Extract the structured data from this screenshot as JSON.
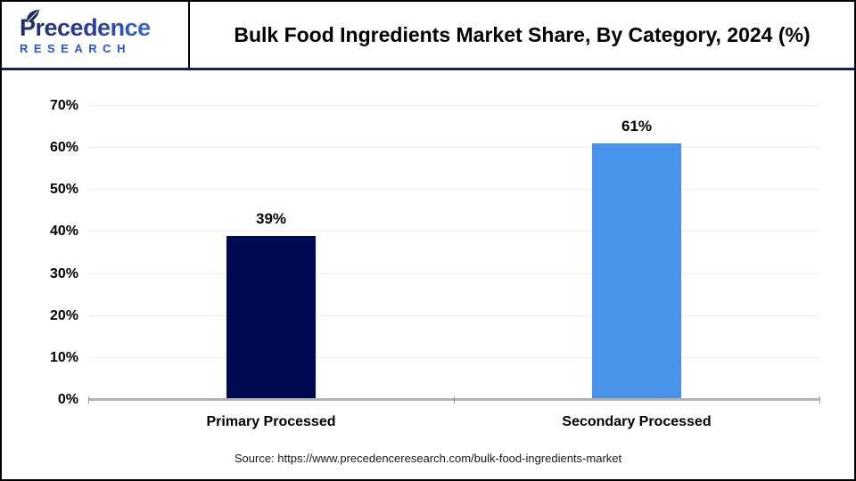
{
  "header": {
    "logo": {
      "brand": "Precedence",
      "sub": "RESEARCH"
    },
    "title": "Bulk Food Ingredients Market Share, By Category, 2024 (%)"
  },
  "chart_data": {
    "type": "bar",
    "title": "Bulk Food Ingredients Market Share, By Category, 2024 (%)",
    "categories": [
      "Primary Processed",
      "Secondary Processed"
    ],
    "values": [
      39,
      61
    ],
    "value_labels": [
      "39%",
      "61%"
    ],
    "bar_colors": [
      "#000a52",
      "#4793ea"
    ],
    "xlabel": "",
    "ylabel": "",
    "ylim": [
      0,
      70
    ],
    "ytick_step": 10,
    "ytick_labels": [
      "0%",
      "10%",
      "20%",
      "30%",
      "40%",
      "50%",
      "60%",
      "70%"
    ],
    "grid": true,
    "legend": false
  },
  "footer": {
    "source": "Source: https://www.precedenceresearch.com/bulk-food-ingredients-market"
  },
  "colors": {
    "bar_primary": "#000a52",
    "bar_secondary": "#4793ea",
    "header_rule": "#1b2153",
    "gridline": "#ebebeb",
    "axis_line": "#b3b3b3",
    "logo_dark": "#222c6b",
    "logo_light": "#4586e3",
    "logo_research": "#2d55c7"
  }
}
